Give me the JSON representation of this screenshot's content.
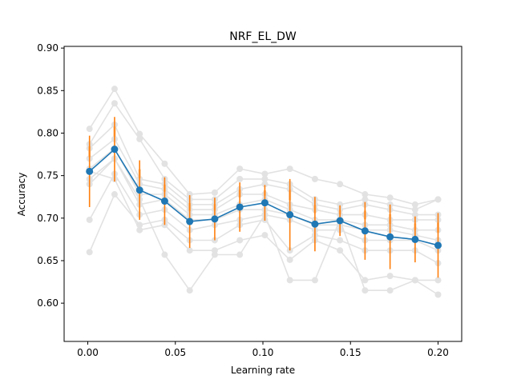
{
  "chart_data": {
    "type": "line",
    "title": "NRF_EL_DW",
    "xlabel": "Learning rate",
    "ylabel": "Accuracy",
    "xlim": [
      -0.0135,
      0.2135
    ],
    "ylim": [
      0.555,
      0.902
    ],
    "grid": false,
    "legend": "none",
    "x_ticks": [
      0.0,
      0.05,
      0.1,
      0.15,
      0.2
    ],
    "x_tick_labels": [
      "0.00",
      "0.05",
      "0.10",
      "0.15",
      "0.20"
    ],
    "y_ticks": [
      0.6,
      0.65,
      0.7,
      0.75,
      0.8,
      0.85,
      0.9
    ],
    "y_tick_labels": [
      "0.60",
      "0.65",
      "0.70",
      "0.75",
      "0.80",
      "0.85",
      "0.90"
    ],
    "x": [
      0.001,
      0.0153,
      0.0296,
      0.0439,
      0.0582,
      0.0725,
      0.0868,
      0.1011,
      0.1154,
      0.1297,
      0.144,
      0.1583,
      0.1726,
      0.1869,
      0.2
    ],
    "series": [
      {
        "role": "mean",
        "values": [
          0.755,
          0.781,
          0.733,
          0.72,
          0.696,
          0.699,
          0.713,
          0.718,
          0.704,
          0.693,
          0.697,
          0.685,
          0.678,
          0.675,
          0.668
        ],
        "error": [
          0.042,
          0.038,
          0.035,
          0.028,
          0.031,
          0.025,
          0.029,
          0.021,
          0.042,
          0.032,
          0.018,
          0.034,
          0.038,
          0.027,
          0.038
        ]
      }
    ],
    "runs": [
      [
        0.805,
        0.852,
        0.799,
        0.764,
        0.728,
        0.73,
        0.758,
        0.752,
        0.758,
        0.746,
        0.74,
        0.728,
        0.724,
        0.716,
        0.722
      ],
      [
        0.787,
        0.835,
        0.793,
        0.746,
        0.722,
        0.722,
        0.746,
        0.746,
        0.74,
        0.722,
        0.716,
        0.722,
        0.716,
        0.71,
        0.722
      ],
      [
        0.782,
        0.81,
        0.746,
        0.74,
        0.716,
        0.716,
        0.734,
        0.74,
        0.734,
        0.716,
        0.71,
        0.716,
        0.71,
        0.704,
        0.704
      ],
      [
        0.77,
        0.793,
        0.74,
        0.734,
        0.71,
        0.71,
        0.728,
        0.728,
        0.716,
        0.71,
        0.704,
        0.704,
        0.698,
        0.698,
        0.698
      ],
      [
        0.758,
        0.782,
        0.728,
        0.728,
        0.704,
        0.704,
        0.716,
        0.722,
        0.71,
        0.698,
        0.698,
        0.692,
        0.692,
        0.686,
        0.686
      ],
      [
        0.746,
        0.77,
        0.716,
        0.722,
        0.698,
        0.698,
        0.71,
        0.71,
        0.704,
        0.692,
        0.692,
        0.686,
        0.686,
        0.68,
        0.674
      ],
      [
        0.698,
        0.752,
        0.704,
        0.71,
        0.686,
        0.692,
        0.698,
        0.704,
        0.698,
        0.686,
        0.686,
        0.674,
        0.674,
        0.674,
        0.662
      ],
      [
        0.66,
        0.728,
        0.692,
        0.698,
        0.674,
        0.674,
        0.692,
        0.698,
        0.662,
        0.68,
        0.674,
        0.662,
        0.662,
        0.662,
        0.647
      ],
      [
        0.755,
        0.746,
        0.686,
        0.692,
        0.662,
        0.662,
        0.674,
        0.68,
        0.651,
        0.674,
        0.662,
        0.627,
        0.632,
        0.627,
        0.627
      ],
      [
        0.74,
        0.77,
        0.722,
        0.657,
        0.615,
        0.657,
        0.657,
        0.704,
        0.627,
        0.627,
        0.698,
        0.615,
        0.615,
        0.627,
        0.61
      ]
    ]
  },
  "colors": {
    "mean_line": "#1f77b4",
    "error_bar": "#ff7f0e",
    "error_bar_faint": "#f7c28f",
    "runs": "#e2e2e2",
    "axes": "#000000"
  }
}
